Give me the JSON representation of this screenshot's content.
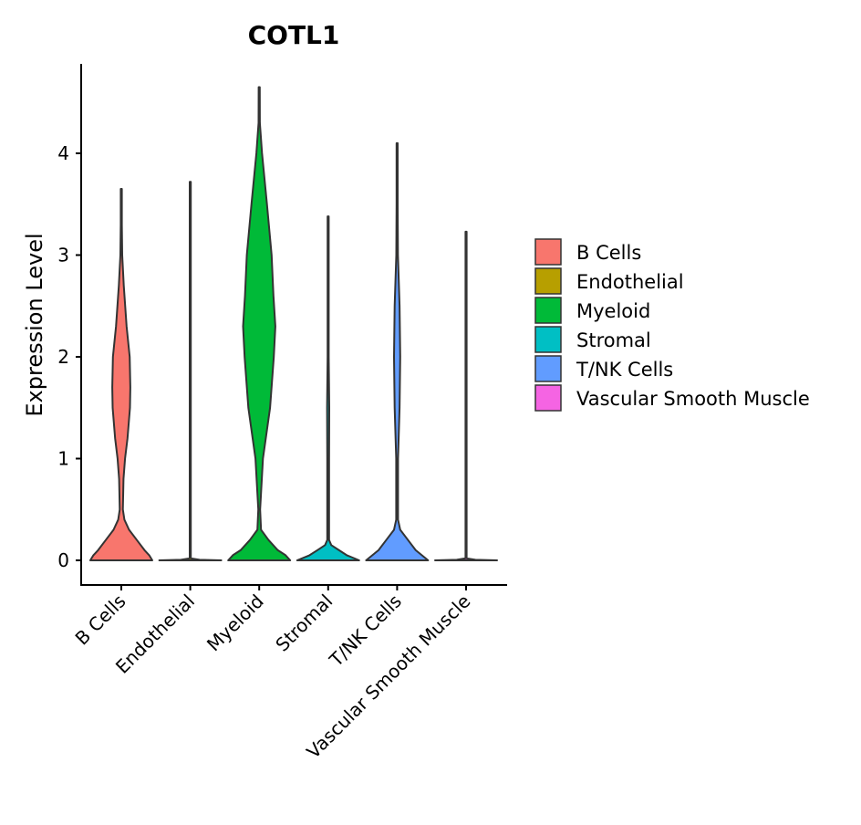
{
  "chart_data": {
    "type": "violin",
    "title": "COTL1",
    "xlabel": "",
    "ylabel": "Expression Level",
    "ylim": [
      -0.24,
      4.88
    ],
    "yticks": [
      0,
      1,
      2,
      3,
      4
    ],
    "grid": false,
    "legend": {
      "placement": "right",
      "title": ""
    },
    "categories": [
      "B Cells",
      "Endothelial",
      "Myeloid",
      "Stromal",
      "T/NK Cells",
      "Vascular Smooth Muscle"
    ],
    "colors": [
      "#F8766D",
      "#B79F00",
      "#00BA38",
      "#00BFC4",
      "#619CFF",
      "#F564E3"
    ],
    "series": [
      {
        "name": "B Cells",
        "max": 3.65,
        "density": [
          [
            0,
            1
          ],
          [
            0.05,
            0.9
          ],
          [
            0.1,
            0.75
          ],
          [
            0.2,
            0.5
          ],
          [
            0.3,
            0.25
          ],
          [
            0.4,
            0.1
          ],
          [
            0.5,
            0.05
          ],
          [
            0.8,
            0.07
          ],
          [
            1.0,
            0.12
          ],
          [
            1.2,
            0.2
          ],
          [
            1.5,
            0.28
          ],
          [
            1.7,
            0.29
          ],
          [
            2.0,
            0.27
          ],
          [
            2.3,
            0.17
          ],
          [
            2.7,
            0.08
          ],
          [
            3.0,
            0.03
          ],
          [
            3.3,
            0.01
          ],
          [
            3.65,
            0
          ]
        ]
      },
      {
        "name": "Endothelial",
        "max": 3.72,
        "density": [
          [
            0,
            1
          ],
          [
            0.005,
            0.3
          ],
          [
            0.02,
            0.01
          ],
          [
            3.72,
            0
          ]
        ]
      },
      {
        "name": "Myeloid",
        "max": 4.65,
        "density": [
          [
            0,
            1
          ],
          [
            0.05,
            0.85
          ],
          [
            0.1,
            0.6
          ],
          [
            0.2,
            0.3
          ],
          [
            0.3,
            0.06
          ],
          [
            0.5,
            0.03
          ],
          [
            1.0,
            0.12
          ],
          [
            1.5,
            0.35
          ],
          [
            2.0,
            0.47
          ],
          [
            2.3,
            0.52
          ],
          [
            2.6,
            0.46
          ],
          [
            3.0,
            0.4
          ],
          [
            3.5,
            0.25
          ],
          [
            4.0,
            0.09
          ],
          [
            4.3,
            0.02
          ],
          [
            4.65,
            0
          ]
        ]
      },
      {
        "name": "Stromal",
        "max": 3.38,
        "density": [
          [
            0,
            1
          ],
          [
            0.05,
            0.6
          ],
          [
            0.1,
            0.35
          ],
          [
            0.15,
            0.1
          ],
          [
            0.2,
            0.03
          ],
          [
            1.0,
            0.03
          ],
          [
            1.5,
            0.035
          ],
          [
            2.0,
            0.015
          ],
          [
            3.38,
            0
          ]
        ]
      },
      {
        "name": "T/NK Cells",
        "max": 4.1,
        "density": [
          [
            0,
            1
          ],
          [
            0.1,
            0.6
          ],
          [
            0.2,
            0.35
          ],
          [
            0.3,
            0.1
          ],
          [
            0.4,
            0.03
          ],
          [
            1.0,
            0.03
          ],
          [
            1.5,
            0.08
          ],
          [
            2.0,
            0.1
          ],
          [
            2.5,
            0.08
          ],
          [
            3.0,
            0.025
          ],
          [
            3.5,
            0.01
          ],
          [
            4.1,
            0
          ]
        ]
      },
      {
        "name": "Vascular Smooth Muscle",
        "max": 3.23,
        "density": [
          [
            0,
            1
          ],
          [
            0.005,
            0.3
          ],
          [
            0.02,
            0.01
          ],
          [
            3.23,
            0
          ]
        ]
      }
    ]
  }
}
